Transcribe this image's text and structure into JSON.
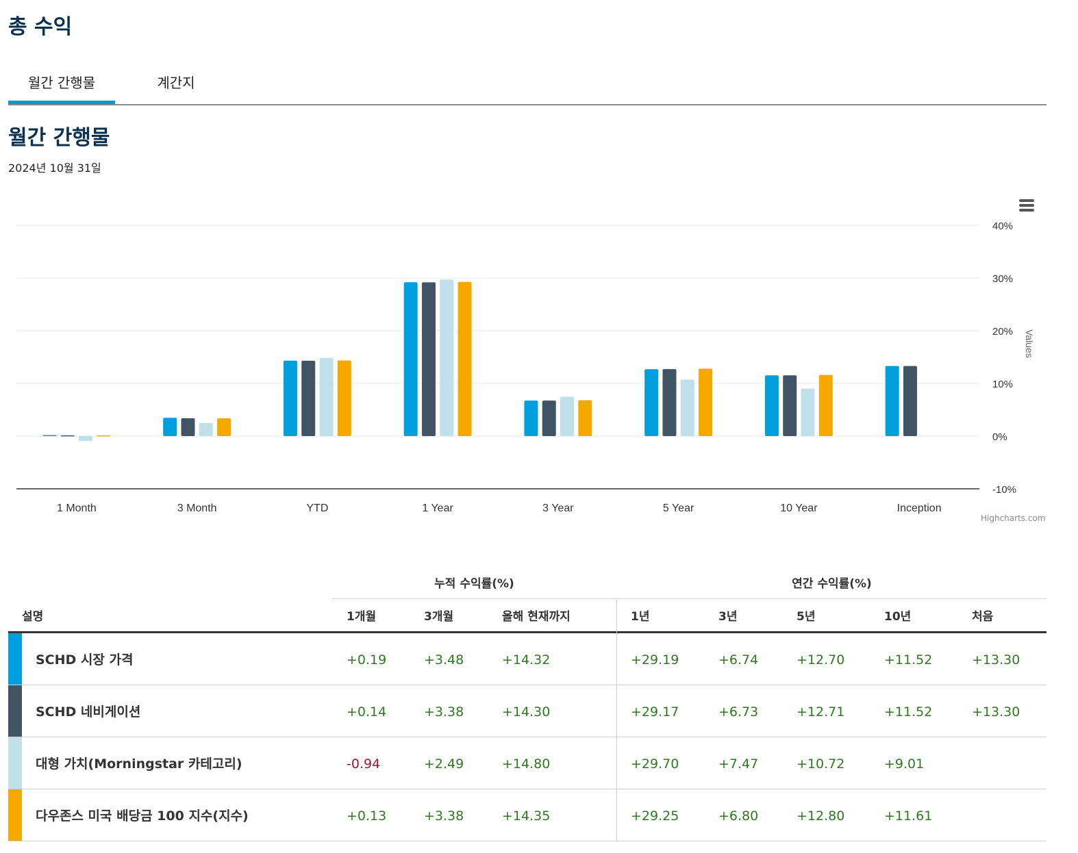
{
  "page_title": "총 수익",
  "tabs": [
    {
      "label": "월간 간행물",
      "active": true
    },
    {
      "label": "계간지",
      "active": false
    }
  ],
  "section_title": "월간 간행물",
  "as_of_date": "2024년 10월 31일",
  "chart_credit": "Highcharts.com",
  "colors": {
    "accent": "#0099d8",
    "positive": "#2d7a1e",
    "negative": "#a0142d"
  },
  "chart_data": {
    "type": "bar",
    "categories": [
      "1 Month",
      "3 Month",
      "YTD",
      "1 Year",
      "3 Year",
      "5 Year",
      "10 Year",
      "Inception"
    ],
    "series": [
      {
        "name": "SCHD 시장 가격",
        "color": "#009fdf",
        "values": [
          0.19,
          3.48,
          14.32,
          29.19,
          6.74,
          12.7,
          11.52,
          13.3
        ]
      },
      {
        "name": "SCHD 네비게이션",
        "color": "#415464",
        "values": [
          0.14,
          3.38,
          14.3,
          29.17,
          6.73,
          12.71,
          11.52,
          13.3
        ]
      },
      {
        "name": "대형 가치(Morningstar 카테고리)",
        "color": "#bfe0e8",
        "values": [
          -0.94,
          2.49,
          14.8,
          29.7,
          7.47,
          10.72,
          9.01,
          null
        ]
      },
      {
        "name": "다우존스 미국 배당금 100 지수(지수)",
        "color": "#f5a800",
        "values": [
          0.13,
          3.38,
          14.35,
          29.25,
          6.8,
          12.8,
          11.61,
          null
        ]
      }
    ],
    "ylim": [
      -10,
      40
    ],
    "yticks": [
      40,
      30,
      20,
      10,
      0,
      -10
    ],
    "ytick_labels": [
      "40%",
      "30%",
      "20%",
      "10%",
      "0%",
      "-10%"
    ],
    "ylabel": "Values",
    "grid": true
  },
  "table": {
    "group_cumulative": "누적 수익률(%)",
    "group_annual": "연간 수익률(%)",
    "headers": [
      "설명",
      "1개월",
      "3개월",
      "올해 현재까지",
      "1년",
      "3년",
      "5년",
      "10년",
      "처음"
    ],
    "rows": [
      {
        "name": "SCHD 시장 가격",
        "color": "#009fdf",
        "values": [
          "+0.19",
          "+3.48",
          "+14.32",
          "+29.19",
          "+6.74",
          "+12.70",
          "+11.52",
          "+13.30"
        ]
      },
      {
        "name": "SCHD 네비게이션",
        "color": "#415464",
        "values": [
          "+0.14",
          "+3.38",
          "+14.30",
          "+29.17",
          "+6.73",
          "+12.71",
          "+11.52",
          "+13.30"
        ]
      },
      {
        "name": "대형 가치(Morningstar 카테고리)",
        "color": "#bfe0e8",
        "values": [
          "-0.94",
          "+2.49",
          "+14.80",
          "+29.70",
          "+7.47",
          "+10.72",
          "+9.01",
          ""
        ]
      },
      {
        "name": "다우존스 미국 배당금 100 지수(지수)",
        "color": "#f5a800",
        "values": [
          "+0.13",
          "+3.38",
          "+14.35",
          "+29.25",
          "+6.80",
          "+12.80",
          "+11.61",
          ""
        ]
      }
    ]
  }
}
